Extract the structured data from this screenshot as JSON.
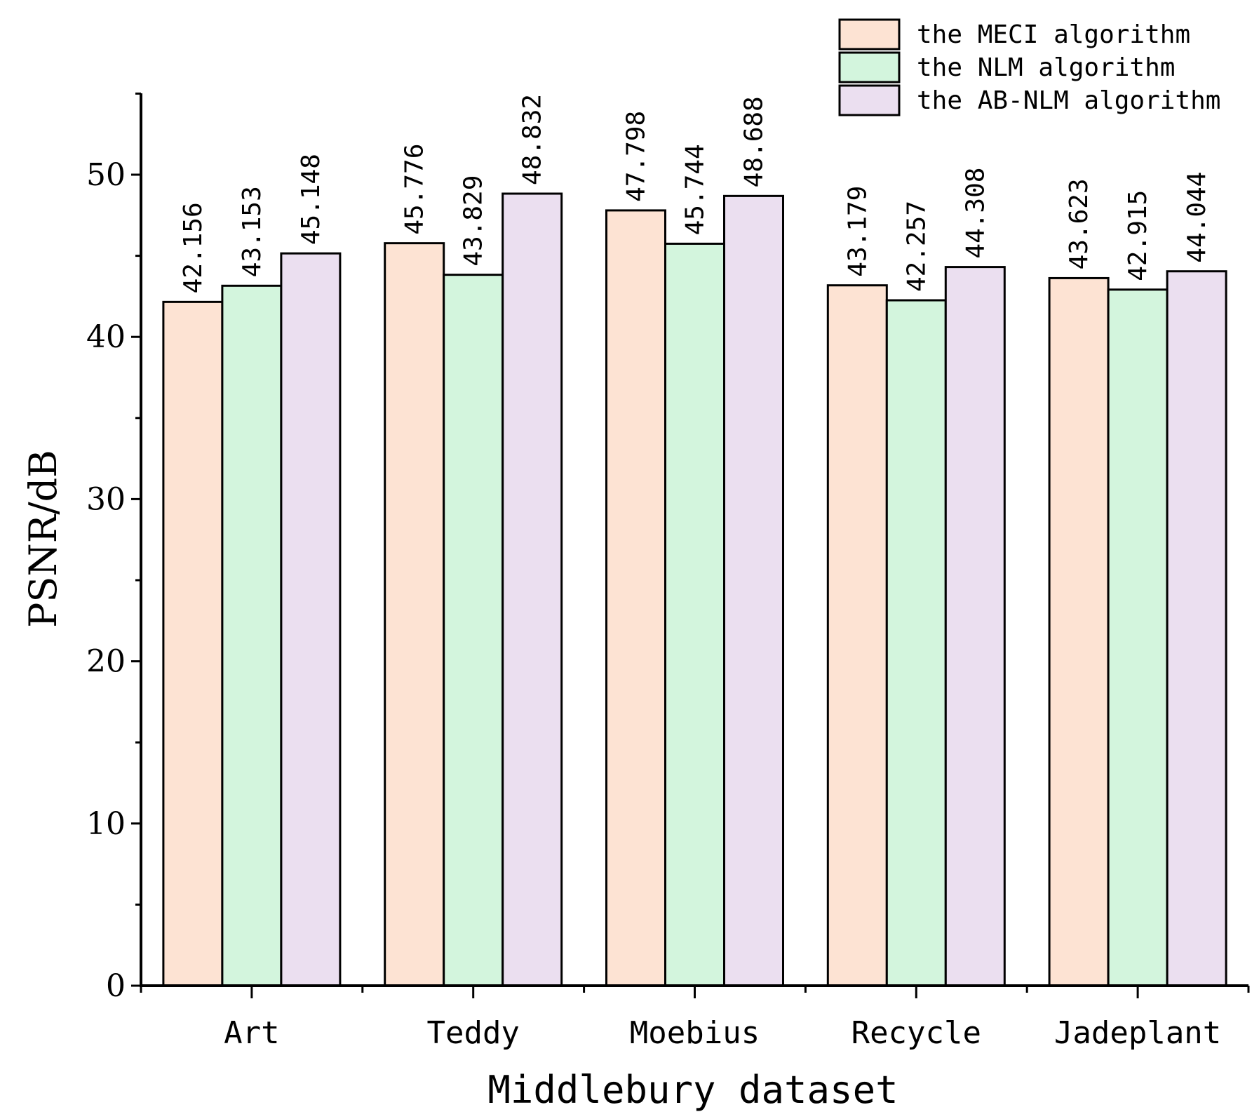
{
  "chart_data": {
    "type": "bar",
    "title": "",
    "xlabel": "Middlebury dataset",
    "ylabel": "PSNR/dB",
    "ylim": [
      0,
      55
    ],
    "yticks": [
      0,
      10,
      20,
      30,
      40,
      50
    ],
    "categories": [
      "Art",
      "Teddy",
      "Moebius",
      "Recycle",
      "Jadeplant"
    ],
    "series": [
      {
        "name": "the MECI algorithm",
        "color": "#fde3d3",
        "values": [
          42.156,
          45.776,
          47.798,
          43.179,
          43.623
        ],
        "labels": [
          "42.156",
          "45.776",
          "47.798",
          "43.179",
          "43.623"
        ]
      },
      {
        "name": "the NLM algorithm",
        "color": "#d3f5dd",
        "values": [
          43.153,
          43.829,
          45.744,
          42.257,
          42.915
        ],
        "labels": [
          "43.153",
          "43.829",
          "45.744",
          "42.257",
          "42.915"
        ]
      },
      {
        "name": "the AB-NLM algorithm",
        "color": "#ebdff0",
        "values": [
          45.148,
          48.832,
          48.688,
          44.308,
          44.044
        ],
        "labels": [
          "45.148",
          "48.832",
          "48.688",
          "44.308",
          "44.044"
        ]
      }
    ],
    "legend_position": "top-right",
    "grid": false
  }
}
